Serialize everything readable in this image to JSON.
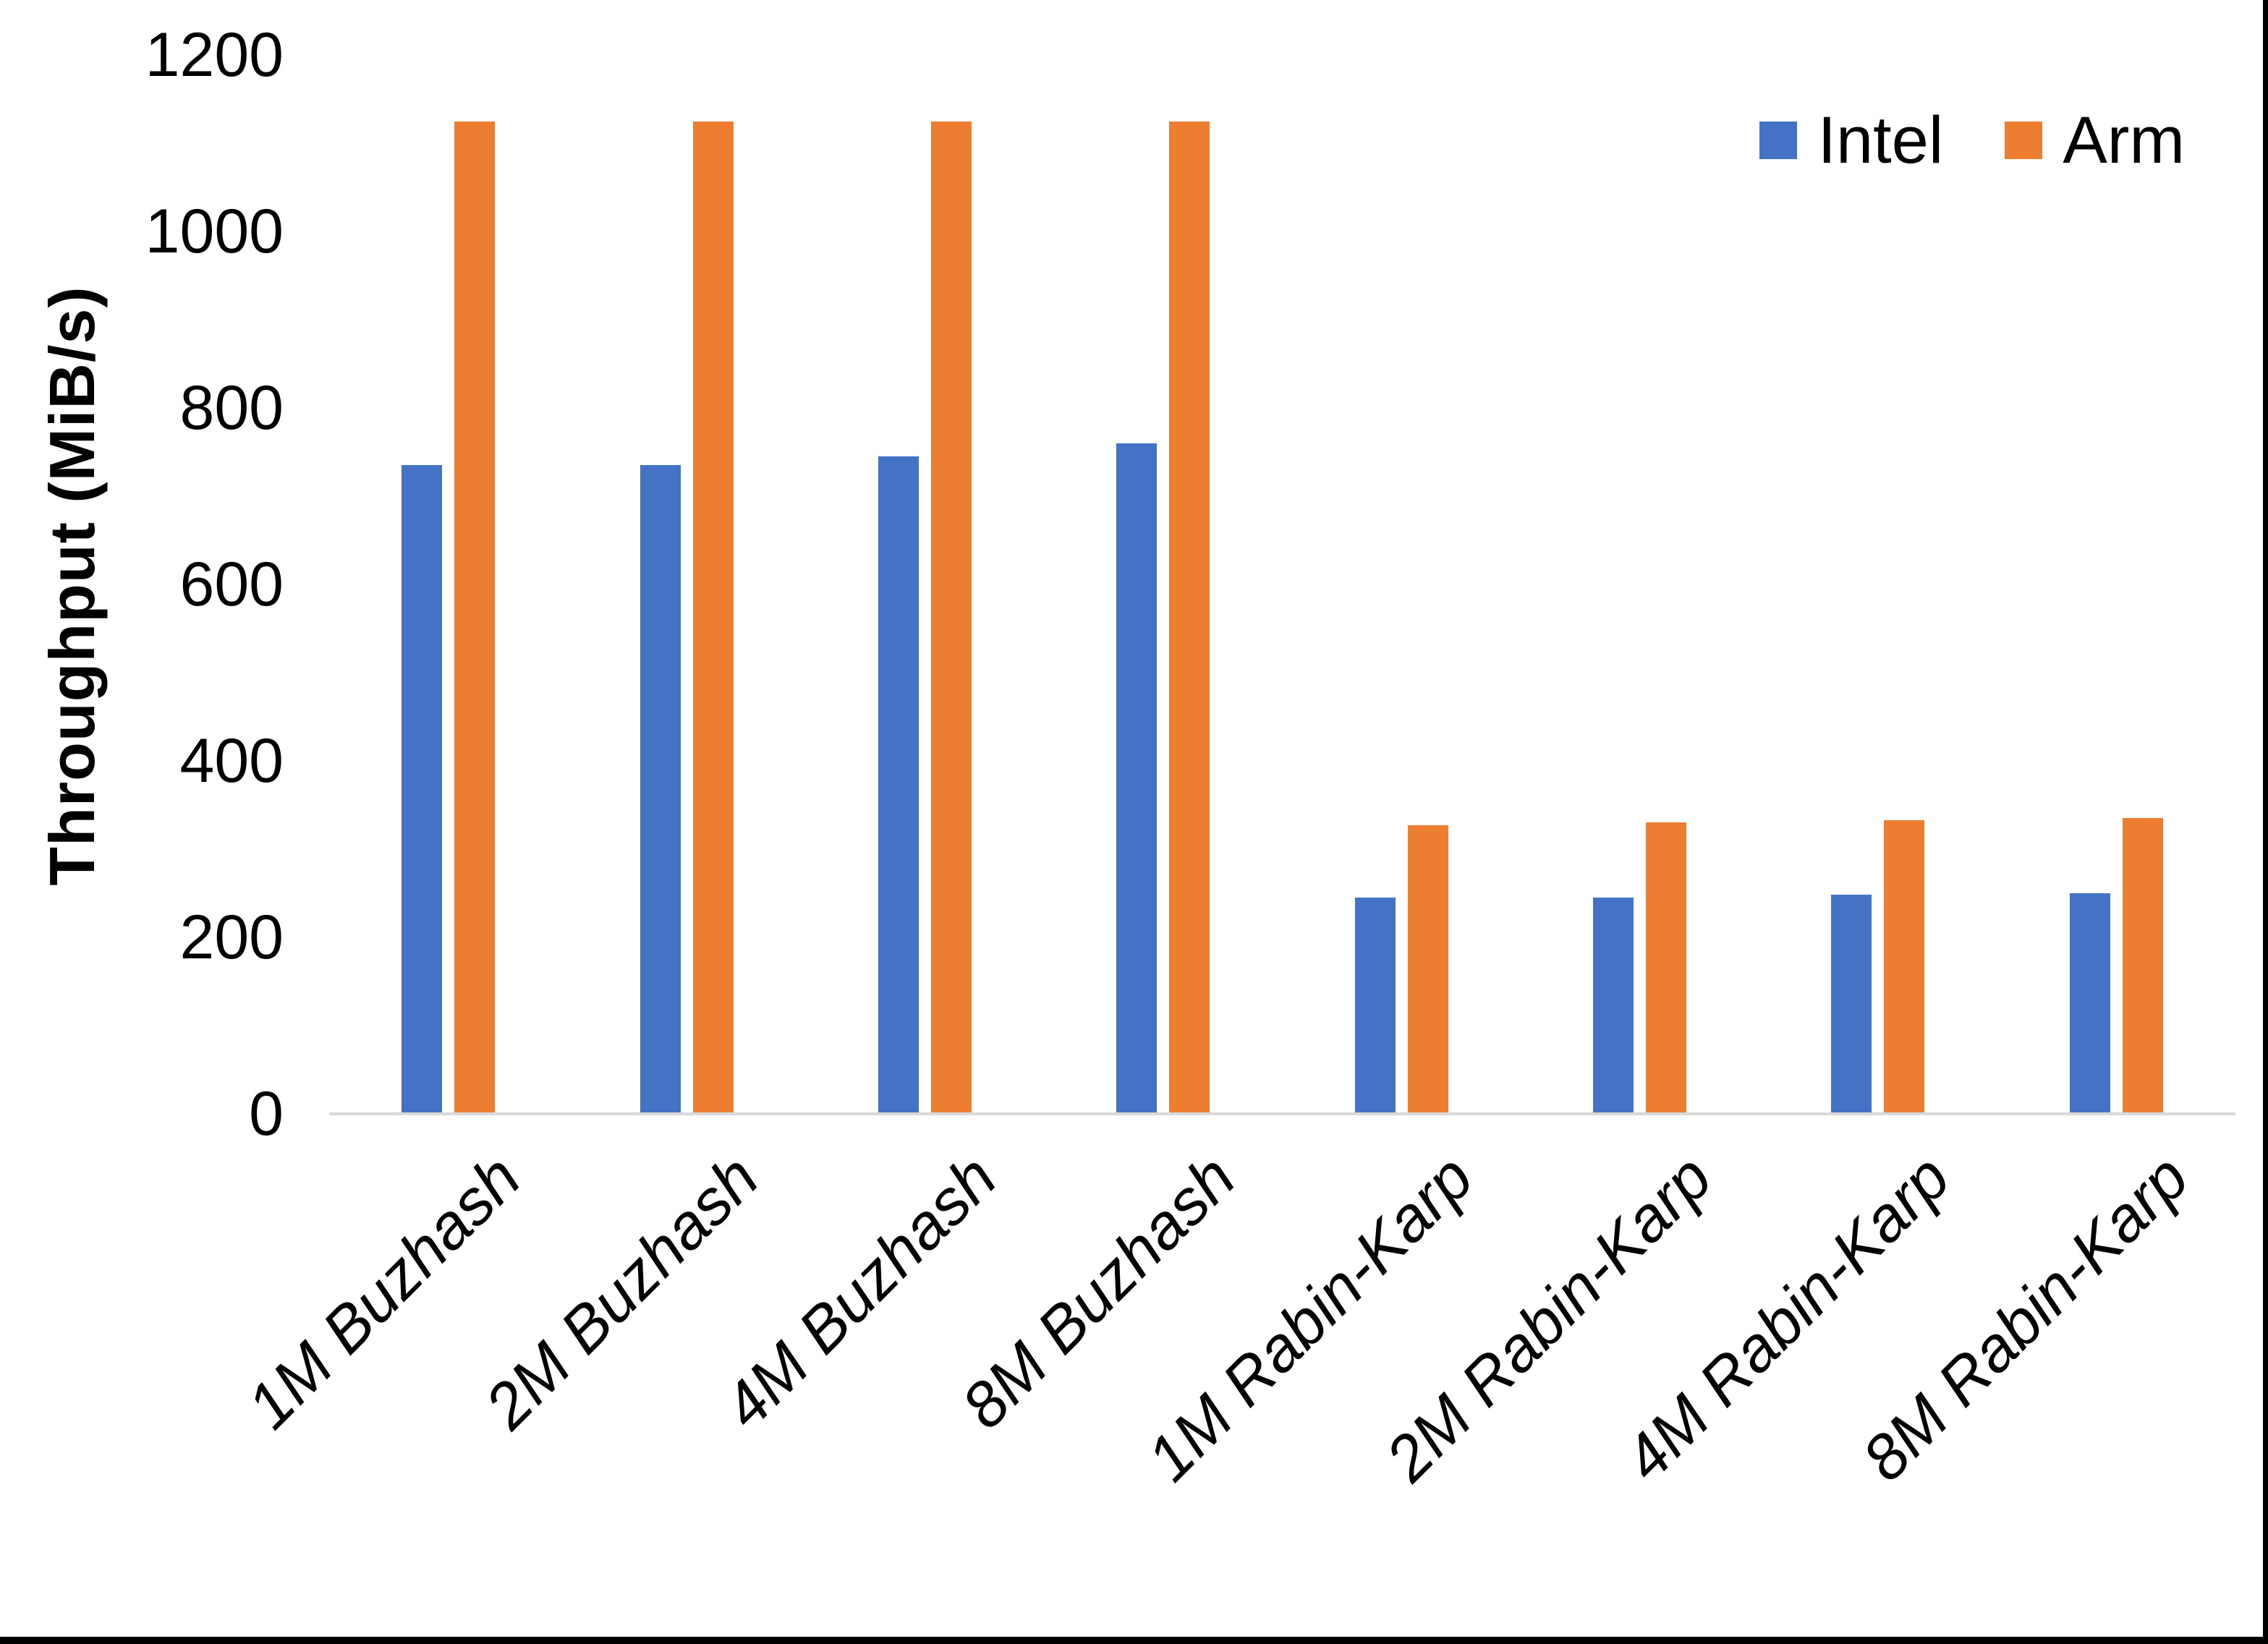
{
  "chart_data": {
    "type": "bar",
    "title": "",
    "xlabel": "",
    "ylabel": "Throughput (MiB/s)",
    "ylim": [
      0,
      1200
    ],
    "yticks": [
      0,
      200,
      400,
      600,
      800,
      1000,
      1200
    ],
    "grid": false,
    "legend_position": "top-right",
    "categories": [
      "1M Buzhash",
      "2M Buzhash",
      "4M Buzhash",
      "8M Buzhash",
      "1M Rabin-Karp",
      "2M Rabin-Karp",
      "4M Rabin-Karp",
      "8M Rabin-Karp"
    ],
    "series": [
      {
        "name": "Intel",
        "color": "#4472C4",
        "values": [
          735,
          735,
          745,
          760,
          245,
          245,
          248,
          250
        ]
      },
      {
        "name": "Arm",
        "color": "#ED7D31",
        "values": [
          1125,
          1125,
          1125,
          1125,
          327,
          330,
          333,
          335
        ]
      }
    ],
    "axis_line_color": "#D9D9D9",
    "text_color": "#000000"
  }
}
